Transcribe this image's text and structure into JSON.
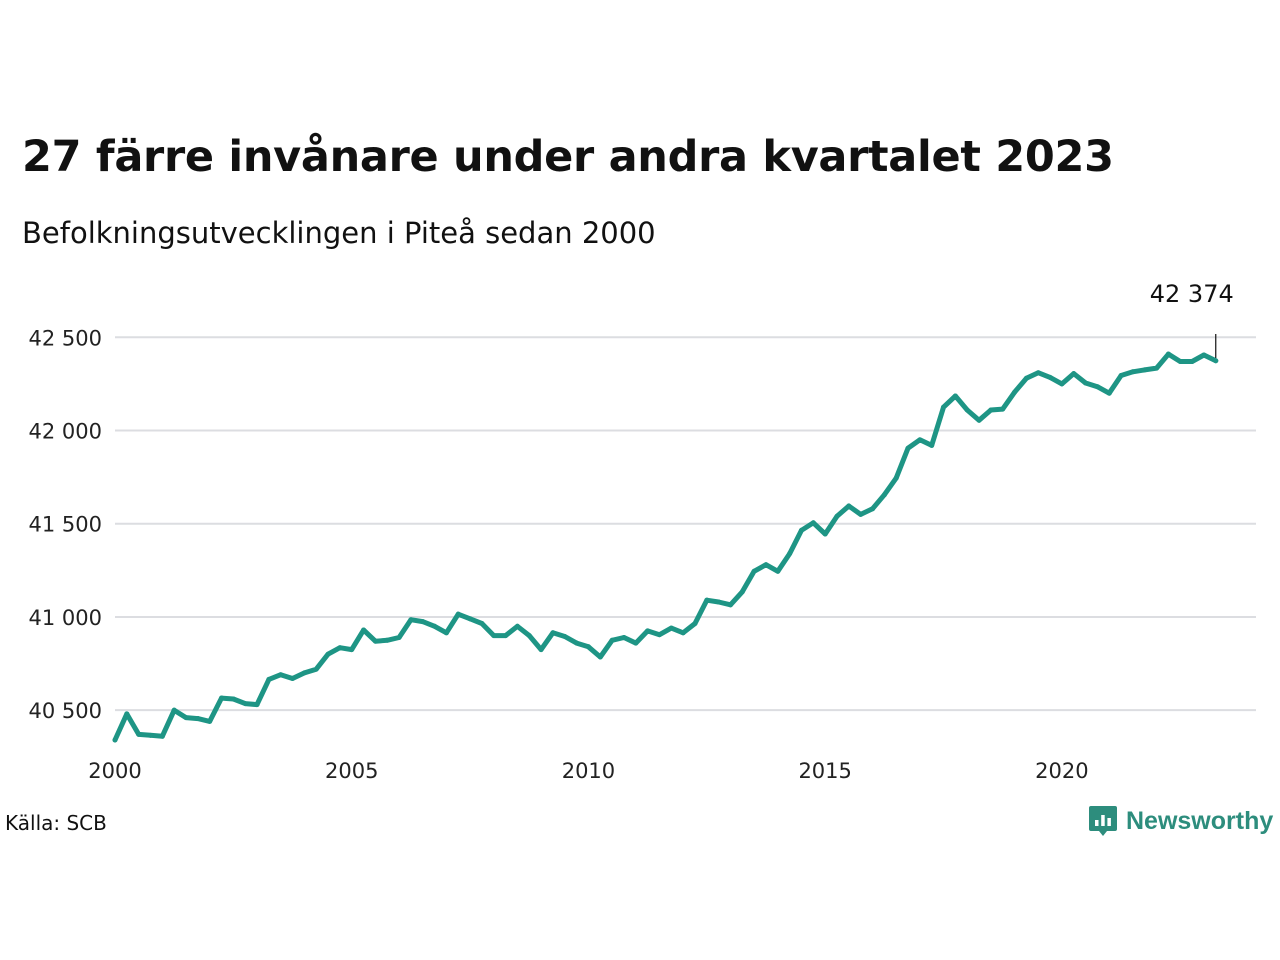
{
  "header": {
    "title": "27 färre invånare under andra kvartalet 2023",
    "subtitle": "Befolkningsutvecklingen i Piteå sedan 2000"
  },
  "footer": {
    "source": "Källa: SCB",
    "brand": "Newsworthy",
    "brand_icon": "newsworthy-logo-icon"
  },
  "chart_data": {
    "type": "line",
    "title": "27 färre invånare under andra kvartalet 2023",
    "subtitle": "Befolkningsutvecklingen i Piteå sedan 2000",
    "xlabel": "",
    "ylabel": "",
    "xlim": [
      2000,
      2024.1
    ],
    "ylim": [
      40340,
      42700
    ],
    "x_ticks": [
      {
        "value": 2000,
        "label": "2000"
      },
      {
        "value": 2005,
        "label": "2005"
      },
      {
        "value": 2010,
        "label": "2010"
      },
      {
        "value": 2015,
        "label": "2015"
      },
      {
        "value": 2020,
        "label": "2020"
      }
    ],
    "y_ticks": [
      {
        "value": 40500,
        "label": "40 500"
      },
      {
        "value": 41000,
        "label": "41 000"
      },
      {
        "value": 41500,
        "label": "41 500"
      },
      {
        "value": 42000,
        "label": "42 000"
      },
      {
        "value": 42500,
        "label": "42 500"
      }
    ],
    "grid": "horizontal",
    "line_color": "#1e9585",
    "end_annotation": {
      "label": "42 374",
      "value": 42374
    },
    "series": [
      {
        "x": [
          2000.0,
          2000.25,
          2000.5,
          2000.75,
          2001.0,
          2001.25,
          2001.5,
          2001.75,
          2002.0,
          2002.25,
          2002.5,
          2002.75,
          2003.0,
          2003.25,
          2003.5,
          2003.75,
          2004.0,
          2004.25,
          2004.5,
          2004.75,
          2005.0,
          2005.25,
          2005.5,
          2005.75,
          2006.0,
          2006.25,
          2006.5,
          2006.75,
          2007.0,
          2007.25,
          2007.5,
          2007.75,
          2008.0,
          2008.25,
          2008.5,
          2008.75,
          2009.0,
          2009.25,
          2009.5,
          2009.75,
          2010.0,
          2010.25,
          2010.5,
          2010.75,
          2011.0,
          2011.25,
          2011.5,
          2011.75,
          2012.0,
          2012.25,
          2012.5,
          2012.75,
          2013.0,
          2013.25,
          2013.5,
          2013.75,
          2014.0,
          2014.25,
          2014.5,
          2014.75,
          2015.0,
          2015.25,
          2015.5,
          2015.75,
          2016.0,
          2016.25,
          2016.5,
          2016.75,
          2017.0,
          2017.25,
          2017.5,
          2017.75,
          2018.0,
          2018.25,
          2018.5,
          2018.75,
          2019.0,
          2019.25,
          2019.5,
          2019.75,
          2020.0,
          2020.25,
          2020.5,
          2020.75,
          2021.0,
          2021.25,
          2021.5,
          2021.75,
          2022.0,
          2022.25,
          2022.5,
          2022.75,
          2023.0,
          2023.25
        ],
        "values": [
          40340,
          40480,
          40370,
          40365,
          40360,
          40500,
          40460,
          40455,
          40440,
          40565,
          40560,
          40535,
          40530,
          40665,
          40690,
          40670,
          40700,
          40720,
          40800,
          40835,
          40825,
          40930,
          40870,
          40875,
          40890,
          40985,
          40975,
          40950,
          40915,
          41015,
          40990,
          40965,
          40900,
          40900,
          40950,
          40900,
          40825,
          40915,
          40895,
          40860,
          40840,
          40785,
          40875,
          40890,
          40860,
          40925,
          40905,
          40940,
          40915,
          40965,
          41090,
          41080,
          41065,
          41135,
          41245,
          41280,
          41245,
          41340,
          41465,
          41505,
          41445,
          41540,
          41595,
          41550,
          41580,
          41655,
          41745,
          41905,
          41950,
          41920,
          42125,
          42185,
          42110,
          42055,
          42110,
          42115,
          42205,
          42280,
          42310,
          42285,
          42250,
          42305,
          42255,
          42235,
          42200,
          42295,
          42315,
          42325,
          42335,
          42410,
          42370,
          42370,
          42405,
          42374
        ]
      }
    ]
  }
}
